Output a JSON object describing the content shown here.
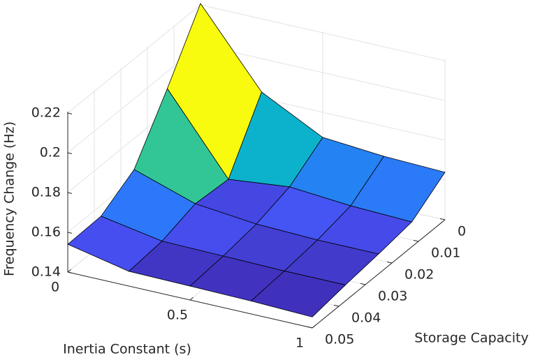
{
  "chart_data": {
    "type": "surface",
    "xlabel": "Inertia Constant (s)",
    "ylabel": "Storage Capacity",
    "zlabel": "Frequency Change (Hz)",
    "x": [
      0,
      0.25,
      0.5,
      0.75,
      1
    ],
    "y": [
      0,
      0.0125,
      0.025,
      0.0375,
      0.05
    ],
    "z": [
      [
        0.2207,
        0.1832,
        0.1674,
        0.1649,
        0.1639
      ],
      [
        0.1915,
        0.1529,
        0.1561,
        0.1536,
        0.1525
      ],
      [
        0.1644,
        0.1542,
        0.151,
        0.15,
        0.15
      ],
      [
        0.1545,
        0.149,
        0.1485,
        0.148,
        0.148
      ],
      [
        0.154,
        0.1474,
        0.147,
        0.1465,
        0.1455
      ]
    ],
    "xlim": [
      0,
      1
    ],
    "ylim": [
      0,
      0.05
    ],
    "zlim": [
      0.14,
      0.2207
    ],
    "xticks": [
      0,
      0.5,
      1
    ],
    "yticks": [
      0,
      0.01,
      0.02,
      0.03,
      0.04,
      0.05
    ],
    "zticks": [
      0.14,
      0.16,
      0.18,
      0.2,
      0.22
    ],
    "colormap": "parula",
    "grid": true
  }
}
